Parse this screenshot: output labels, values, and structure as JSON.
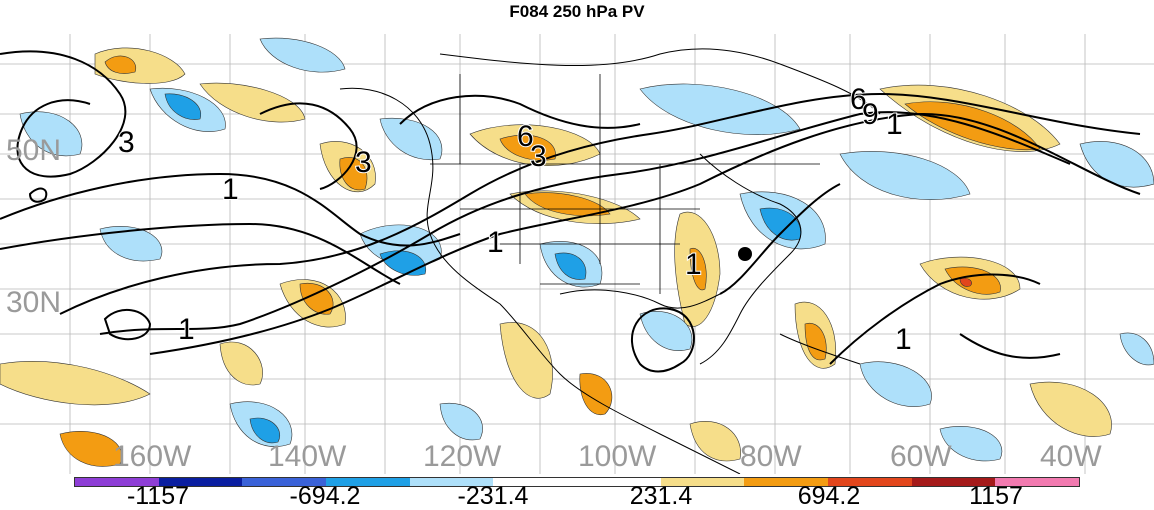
{
  "title": "F084 250 hPa PV",
  "map": {
    "lat_labels": [
      "50N",
      "30N"
    ],
    "lon_labels": [
      "160W",
      "140W",
      "120W",
      "100W",
      "80W",
      "60W",
      "40W"
    ],
    "contour_labels": [
      "3",
      "3",
      "1",
      "1",
      "1",
      "6",
      "3",
      "6",
      "9",
      "1",
      "1",
      "1"
    ],
    "positive_color": "#f5c518",
    "negative_color": "#4fb8f0",
    "strong_positive": "#f39c12",
    "strong_negative": "#1fa0e6"
  },
  "colorbar": {
    "colors": [
      "#8e3ed6",
      "#0a1ea0",
      "#3a62d8",
      "#1fa0e6",
      "#aee0fa",
      "#ffffff",
      "#ffffff",
      "#f6de8a",
      "#f39c12",
      "#e2461c",
      "#a51a1a",
      "#f27ab0"
    ],
    "labels": [
      "-1157",
      "-694.2",
      "-231.4",
      "231.4",
      "694.2",
      "1157"
    ]
  }
}
